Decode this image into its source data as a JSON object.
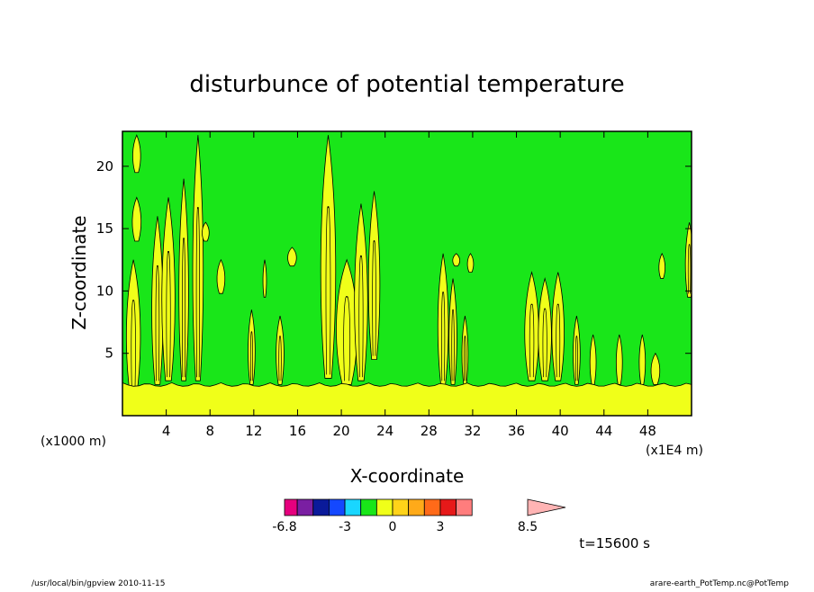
{
  "chart_data": {
    "type": "heatmap",
    "title": "disturbunce of potential temperature",
    "xlabel": "X-coordinate",
    "ylabel": "Z-coordinate",
    "x_unit_left": "(x1000 m)",
    "x_unit_right": "(x1E4 m)",
    "xlim": [
      0,
      52
    ],
    "ylim": [
      0,
      22.8
    ],
    "x_ticks": [
      4,
      8,
      12,
      16,
      20,
      24,
      28,
      32,
      36,
      40,
      44,
      48
    ],
    "y_ticks": [
      5,
      10,
      15,
      20
    ],
    "colorbar": {
      "levels": [
        -6.8,
        -6,
        -5,
        -4,
        -3,
        -2,
        -1,
        0,
        1,
        2,
        3,
        4,
        5,
        8.5
      ],
      "colors": [
        "#e6007e",
        "#7a1fa2",
        "#0a1a9a",
        "#1448ff",
        "#19d6ff",
        "#19e619",
        "#f0ff19",
        "#ffd319",
        "#ffaa19",
        "#ff6a19",
        "#e61919",
        "#ff7d7d",
        "#ffb4b4"
      ],
      "tick_labels": [
        "-6.8",
        "-3",
        "0",
        "3",
        "8.5"
      ],
      "tick_values": [
        -6.8,
        -3,
        0,
        3,
        8.5
      ]
    },
    "time_label": "t=15600 s",
    "background_value_color": "#19e619",
    "positive_color": "#f0ff19",
    "bottom_band": {
      "top_z": 2.5
    },
    "features": [
      {
        "x": 1.0,
        "base": 1.5,
        "top": 12.5,
        "width": 1.6
      },
      {
        "x": 1.3,
        "base": 14.0,
        "top": 17.5,
        "width": 1.0
      },
      {
        "x": 1.3,
        "base": 19.5,
        "top": 22.5,
        "width": 0.9
      },
      {
        "x": 3.2,
        "base": 2.5,
        "top": 16.0,
        "width": 1.3
      },
      {
        "x": 4.2,
        "base": 2.8,
        "top": 17.5,
        "width": 1.5
      },
      {
        "x": 5.6,
        "base": 2.8,
        "top": 19.0,
        "width": 1.1
      },
      {
        "x": 6.9,
        "base": 2.8,
        "top": 22.5,
        "width": 1.2
      },
      {
        "x": 7.6,
        "base": 14.0,
        "top": 15.5,
        "width": 0.8
      },
      {
        "x": 9.0,
        "base": 9.8,
        "top": 12.5,
        "width": 0.9
      },
      {
        "x": 11.8,
        "base": 2.5,
        "top": 8.5,
        "width": 0.8
      },
      {
        "x": 14.4,
        "base": 2.5,
        "top": 8.0,
        "width": 0.9
      },
      {
        "x": 13.0,
        "base": 9.5,
        "top": 12.5,
        "width": 0.4
      },
      {
        "x": 15.5,
        "base": 12.0,
        "top": 13.5,
        "width": 1.0
      },
      {
        "x": 18.8,
        "base": 3.0,
        "top": 22.5,
        "width": 1.7
      },
      {
        "x": 20.5,
        "base": 2.5,
        "top": 12.5,
        "width": 2.4
      },
      {
        "x": 21.8,
        "base": 2.8,
        "top": 17.0,
        "width": 1.5
      },
      {
        "x": 23.0,
        "base": 4.5,
        "top": 18.0,
        "width": 1.3
      },
      {
        "x": 29.3,
        "base": 2.5,
        "top": 13.0,
        "width": 1.2
      },
      {
        "x": 30.2,
        "base": 2.5,
        "top": 11.0,
        "width": 0.9
      },
      {
        "x": 30.5,
        "base": 12.0,
        "top": 13.0,
        "width": 0.8
      },
      {
        "x": 31.3,
        "base": 2.5,
        "top": 8.0,
        "width": 0.7
      },
      {
        "x": 31.8,
        "base": 11.5,
        "top": 13.0,
        "width": 0.7
      },
      {
        "x": 37.4,
        "base": 2.8,
        "top": 11.5,
        "width": 1.6
      },
      {
        "x": 38.6,
        "base": 2.8,
        "top": 11.0,
        "width": 1.5
      },
      {
        "x": 39.8,
        "base": 2.8,
        "top": 11.5,
        "width": 1.4
      },
      {
        "x": 41.5,
        "base": 2.5,
        "top": 8.0,
        "width": 0.8
      },
      {
        "x": 43.0,
        "base": 2.5,
        "top": 6.5,
        "width": 0.7
      },
      {
        "x": 45.4,
        "base": 2.5,
        "top": 6.5,
        "width": 0.7
      },
      {
        "x": 47.5,
        "base": 2.5,
        "top": 6.5,
        "width": 0.7
      },
      {
        "x": 48.7,
        "base": 2.5,
        "top": 5.0,
        "width": 1.0
      },
      {
        "x": 49.3,
        "base": 11.0,
        "top": 13.0,
        "width": 0.7
      },
      {
        "x": 51.8,
        "base": 9.5,
        "top": 15.5,
        "width": 0.9
      }
    ]
  },
  "footer": {
    "left_text": "/usr/local/bin/gpview   2010-11-15",
    "right_text": "arare-earth_PotTemp.nc@PotTemp"
  }
}
